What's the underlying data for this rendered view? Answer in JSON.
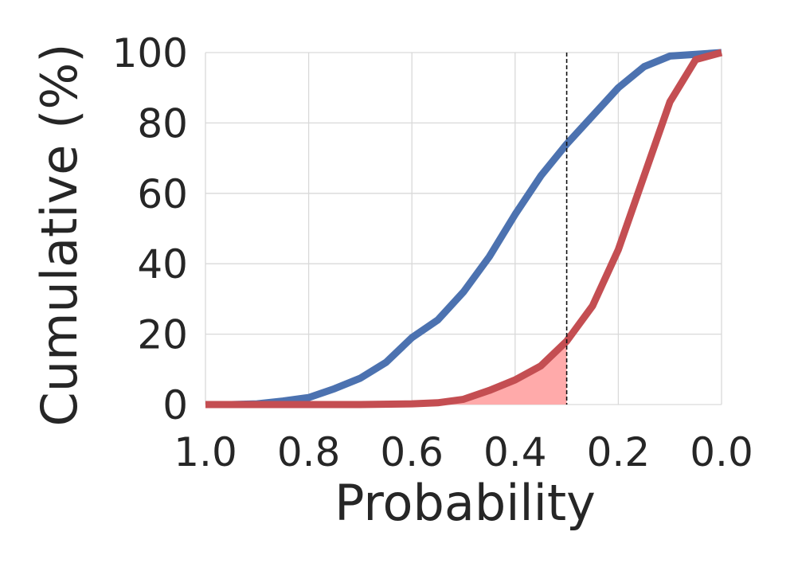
{
  "chart_data": {
    "type": "line",
    "xlabel": "Probability",
    "ylabel": "Cumulative (%)",
    "x_reversed": true,
    "xlim": [
      1.0,
      0.0
    ],
    "ylim": [
      0,
      100
    ],
    "xticks": [
      "1.0",
      "0.8",
      "0.6",
      "0.4",
      "0.2",
      "0.0"
    ],
    "xtick_values": [
      1.0,
      0.8,
      0.6,
      0.4,
      0.2,
      0.0
    ],
    "yticks": [
      "0",
      "20",
      "40",
      "60",
      "80",
      "100"
    ],
    "ytick_values": [
      0,
      20,
      40,
      60,
      80,
      100
    ],
    "grid": true,
    "threshold": 0.3,
    "series": [
      {
        "color": "#4c72b0",
        "x": [
          1.0,
          0.95,
          0.9,
          0.85,
          0.8,
          0.75,
          0.7,
          0.65,
          0.6,
          0.55,
          0.5,
          0.45,
          0.4,
          0.35,
          0.3,
          0.25,
          0.2,
          0.15,
          0.1,
          0.05,
          0.0
        ],
        "y": [
          0,
          0,
          0.2,
          1,
          2,
          4.5,
          7.5,
          12,
          19,
          24,
          32,
          42,
          54,
          65,
          74,
          82,
          90,
          96,
          99,
          99.5,
          100
        ]
      },
      {
        "color": "#c44e52",
        "x": [
          1.0,
          0.9,
          0.8,
          0.7,
          0.6,
          0.55,
          0.5,
          0.45,
          0.4,
          0.35,
          0.3,
          0.25,
          0.2,
          0.15,
          0.1,
          0.05,
          0.0
        ],
        "y": [
          0,
          0,
          0,
          0,
          0.2,
          0.5,
          1.5,
          4,
          7,
          11,
          18,
          28,
          44,
          65,
          86,
          98,
          100
        ]
      }
    ],
    "shaded_area": {
      "series_index": 1,
      "x_from": 1.0,
      "x_to": 0.3,
      "color": "#ffaaaa"
    }
  }
}
